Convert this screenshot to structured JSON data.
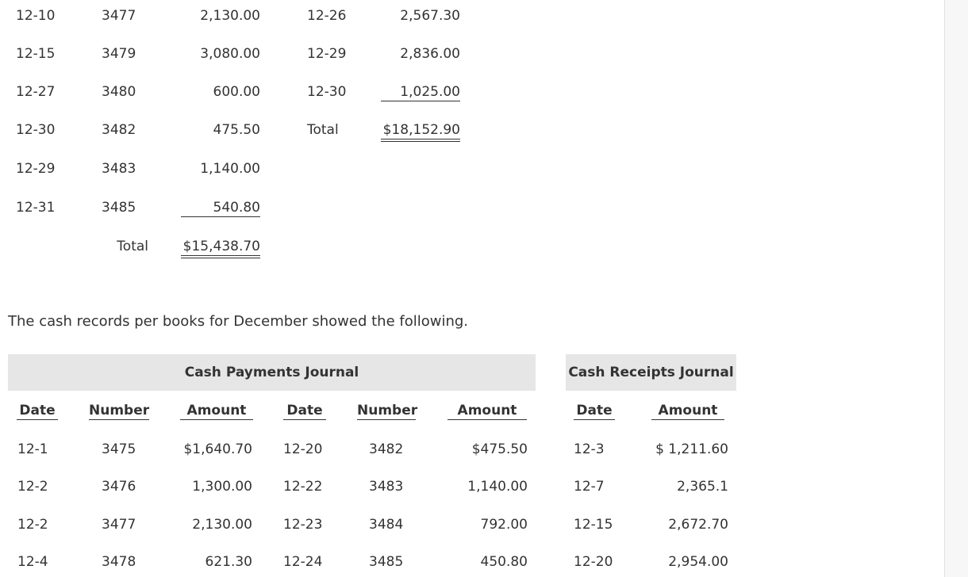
{
  "bank_statement": {
    "checks": {
      "rows": [
        [
          "12-10",
          "3477",
          "2,130.00"
        ],
        [
          "12-15",
          "3479",
          "3,080.00"
        ],
        [
          "12-27",
          "3480",
          "600.00"
        ],
        [
          "12-30",
          "3482",
          "475.50"
        ],
        [
          "12-29",
          "3483",
          "1,140.00"
        ],
        [
          "12-31",
          "3485",
          "540.80"
        ]
      ],
      "total_label": "Total",
      "total": "$15,438.70"
    },
    "deposits": {
      "rows": [
        [
          "12-26",
          "2,567.30"
        ],
        [
          "12-29",
          "2,836.00"
        ],
        [
          "12-30",
          "1,025.00"
        ]
      ],
      "total_label": "Total",
      "total": "$18,152.90"
    }
  },
  "intro": "The cash records per books for December showed the following.",
  "cash_payments": {
    "title": "Cash Payments Journal",
    "headers": [
      "Date",
      "Number",
      "Amount",
      "Date",
      "Number",
      "Amount"
    ],
    "rows": [
      [
        "12-1",
        "3475",
        "$1,640.70",
        "12-20",
        "3482",
        "$475.50"
      ],
      [
        "12-2",
        "3476",
        "1,300.00",
        "12-22",
        "3483",
        "1,140.00"
      ],
      [
        "12-2",
        "3477",
        "2,130.00",
        "12-23",
        "3484",
        "792.00"
      ],
      [
        "12-4",
        "3478",
        "621.30",
        "12-24",
        "3485",
        "450.80"
      ]
    ]
  },
  "cash_receipts": {
    "title": "Cash Receipts Journal",
    "headers": [
      "Date",
      "Amount"
    ],
    "rows": [
      [
        "12-3",
        "$ 1,211.60"
      ],
      [
        "12-7",
        "2,365.1"
      ],
      [
        "12-15",
        "2,672.70"
      ],
      [
        "12-20",
        "2,954.00"
      ]
    ]
  }
}
